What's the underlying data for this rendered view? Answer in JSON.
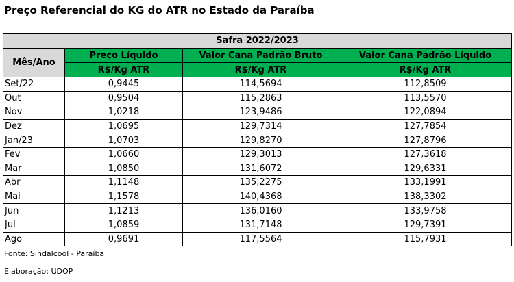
{
  "title": "Preço Referencial do KG do ATR no Estado da Paraíba",
  "table": {
    "caption": "Safra 2022/2023",
    "row_header": "Mês/Ano",
    "columns": [
      "Preço Líquido",
      "Valor Cana Padrão Bruto",
      "Valor Cana Padrão Líquido"
    ],
    "units": [
      "R$/Kg  ATR",
      "R$/Kg  ATR",
      "R$/Kg  ATR"
    ],
    "rows": [
      [
        "Set/22",
        "0,9445",
        "114,5694",
        "112,8509"
      ],
      [
        "Out",
        "0,9504",
        "115,2863",
        "113,5570"
      ],
      [
        "Nov",
        "1,0218",
        "123,9486",
        "122,0894"
      ],
      [
        "Dez",
        "1,0695",
        "129,7314",
        "127,7854"
      ],
      [
        "Jan/23",
        "1,0703",
        "129,8270",
        "127,8796"
      ],
      [
        "Fev",
        "1,0660",
        "129,3013",
        "127,3618"
      ],
      [
        "Mar",
        "1,0850",
        "131,6072",
        "129,6331"
      ],
      [
        "Abr",
        "1,1148",
        "135,2275",
        "133,1991"
      ],
      [
        "Mai",
        "1,1578",
        "140,4368",
        "138,3302"
      ],
      [
        "Jun",
        "1,1213",
        "136,0160",
        "133,9758"
      ],
      [
        "Jul",
        "1,0859",
        "131,7148",
        "129,7391"
      ],
      [
        "Ago",
        "0,9691",
        "117,5564",
        "115,7931"
      ]
    ]
  },
  "footer": {
    "source_label": "Fonte:",
    "source": "Sindalcool - Paraíba",
    "credit": "Elaboração: UDOP"
  }
}
